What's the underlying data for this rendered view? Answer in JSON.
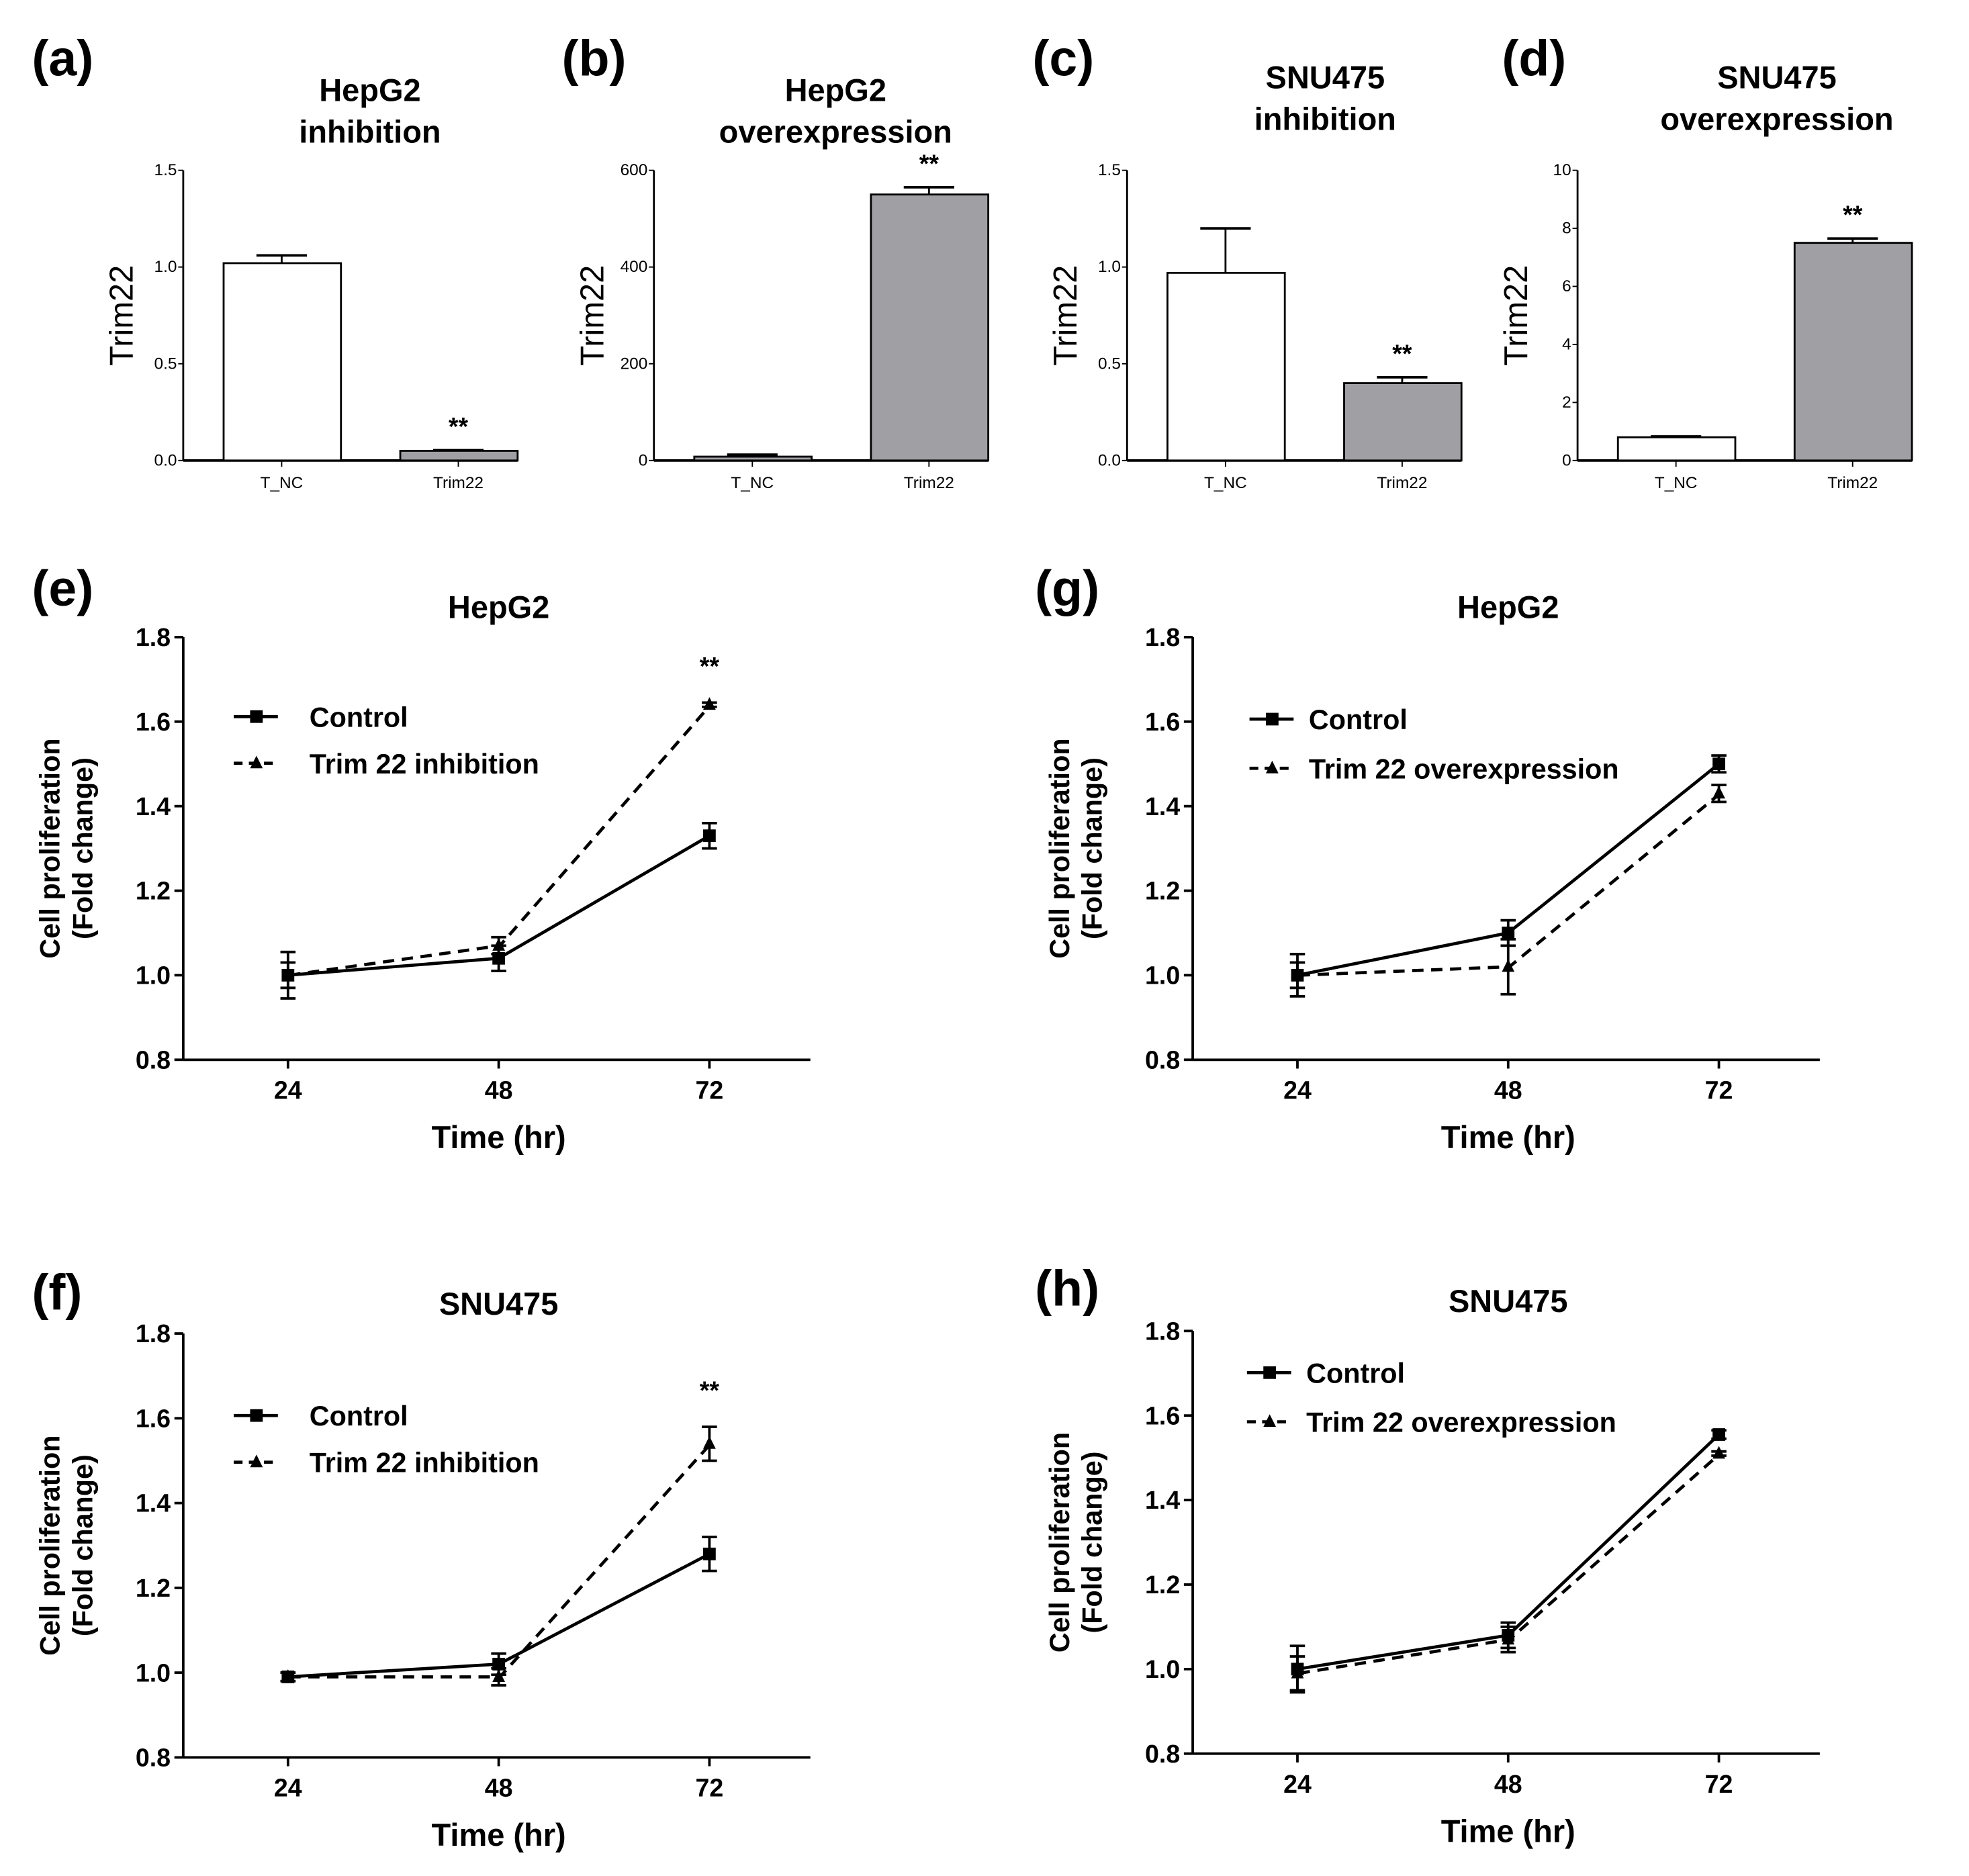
{
  "chart_data": [
    {
      "panel": "(a)",
      "type": "bar",
      "title": [
        "HepG2",
        "inhibition"
      ],
      "ylabel": "Trim22",
      "categories": [
        "T_NC",
        "Trim22"
      ],
      "values": [
        1.02,
        0.05
      ],
      "errors": [
        0.04,
        0.003
      ],
      "colors": [
        "#ffffff",
        "#a0a0a4"
      ],
      "ylim": [
        0,
        1.5
      ],
      "yticks": [
        "0.0",
        "0.5",
        "1.0",
        "1.5"
      ],
      "ytick_values": [
        0,
        0.5,
        1.0,
        1.5
      ],
      "significance": [
        "",
        "**"
      ]
    },
    {
      "panel": "(b)",
      "type": "bar",
      "title": [
        "HepG2",
        "overexpression"
      ],
      "ylabel": "Trim22",
      "categories": [
        "T_NC",
        "Trim22"
      ],
      "values": [
        8,
        550
      ],
      "errors": [
        4,
        15
      ],
      "colors": [
        "#a0a0a4",
        "#a0a0a4"
      ],
      "ylim": [
        0,
        600
      ],
      "yticks": [
        "0",
        "200",
        "400",
        "600"
      ],
      "ytick_values": [
        0,
        200,
        400,
        600
      ],
      "significance": [
        "",
        "**"
      ]
    },
    {
      "panel": "(c)",
      "type": "bar",
      "title": [
        "SNU475",
        "inhibition"
      ],
      "ylabel": "Trim22",
      "categories": [
        "T_NC",
        "Trim22"
      ],
      "values": [
        0.97,
        0.4
      ],
      "errors": [
        0.23,
        0.03
      ],
      "colors": [
        "#ffffff",
        "#a0a0a4"
      ],
      "ylim": [
        0,
        1.5
      ],
      "yticks": [
        "0.0",
        "0.5",
        "1.0",
        "1.5"
      ],
      "ytick_values": [
        0,
        0.5,
        1.0,
        1.5
      ],
      "significance": [
        "",
        "**"
      ]
    },
    {
      "panel": "(d)",
      "type": "bar",
      "title": [
        "SNU475",
        "overexpression"
      ],
      "ylabel": "Trim22",
      "categories": [
        "T_NC",
        "Trim22"
      ],
      "values": [
        0.8,
        7.5
      ],
      "errors": [
        0.03,
        0.15
      ],
      "colors": [
        "#ffffff",
        "#a0a0a4"
      ],
      "ylim": [
        0,
        10
      ],
      "yticks": [
        "0",
        "2",
        "4",
        "6",
        "8",
        "10"
      ],
      "ytick_values": [
        0,
        2,
        4,
        6,
        8,
        10
      ],
      "significance": [
        "",
        "**"
      ]
    },
    {
      "panel": "(e)",
      "type": "line",
      "title": "HepG2",
      "xlabel": "Time (hr)",
      "ylabel": [
        "Cell proliferation",
        "(Fold change)"
      ],
      "x": [
        "24",
        "48",
        "72"
      ],
      "ylim": [
        0.8,
        1.8
      ],
      "yticks": [
        "0.8",
        "1.0",
        "1.2",
        "1.4",
        "1.6",
        "1.8"
      ],
      "ytick_values": [
        0.8,
        1.0,
        1.2,
        1.4,
        1.6,
        1.8
      ],
      "legend_placement": "top-left",
      "significance": "**",
      "series": [
        {
          "name": "Control",
          "values": [
            1.0,
            1.04,
            1.33
          ],
          "errors": [
            0.03,
            0.03,
            0.03
          ],
          "marker": "square",
          "dash": false
        },
        {
          "name": "Trim 22 inhibition",
          "values": [
            1.0,
            1.07,
            1.64
          ],
          "errors": [
            0.055,
            0.02,
            0.005
          ],
          "marker": "triangle",
          "dash": true
        }
      ]
    },
    {
      "panel": "(g)",
      "type": "line",
      "title": "HepG2",
      "xlabel": "Time (hr)",
      "ylabel": [
        "Cell proliferation",
        "(Fold change)"
      ],
      "x": [
        "24",
        "48",
        "72"
      ],
      "ylim": [
        0.8,
        1.8
      ],
      "yticks": [
        "0.8",
        "1.0",
        "1.2",
        "1.4",
        "1.6",
        "1.8"
      ],
      "ytick_values": [
        0.8,
        1.0,
        1.2,
        1.4,
        1.6,
        1.8
      ],
      "legend_placement": "top-left",
      "significance": "",
      "series": [
        {
          "name": "Control",
          "values": [
            1.0,
            1.1,
            1.5
          ],
          "errors": [
            0.03,
            0.03,
            0.02
          ],
          "marker": "square",
          "dash": false
        },
        {
          "name": "Trim 22 overexpression",
          "values": [
            1.0,
            1.02,
            1.43
          ],
          "errors": [
            0.05,
            0.065,
            0.02
          ],
          "marker": "triangle",
          "dash": true
        }
      ]
    },
    {
      "panel": "(f)",
      "type": "line",
      "title": "SNU475",
      "xlabel": "Time (hr)",
      "ylabel": [
        "Cell proliferation",
        "(Fold change)"
      ],
      "x": [
        "24",
        "48",
        "72"
      ],
      "ylim": [
        0.8,
        1.8
      ],
      "yticks": [
        "0.8",
        "1.0",
        "1.2",
        "1.4",
        "1.6",
        "1.8"
      ],
      "ytick_values": [
        0.8,
        1.0,
        1.2,
        1.4,
        1.6,
        1.8
      ],
      "legend_placement": "top-left",
      "significance": "**",
      "series": [
        {
          "name": "Control",
          "values": [
            0.99,
            1.02,
            1.28
          ],
          "errors": [
            0.01,
            0.025,
            0.04
          ],
          "marker": "square",
          "dash": false
        },
        {
          "name": "Trim 22 inhibition",
          "values": [
            0.99,
            0.99,
            1.54
          ],
          "errors": [
            0.01,
            0.02,
            0.04
          ],
          "marker": "triangle",
          "dash": true
        }
      ]
    },
    {
      "panel": "(h)",
      "type": "line",
      "title": "SNU475",
      "xlabel": "Time (hr)",
      "ylabel": [
        "Cell proliferation",
        "(Fold change)"
      ],
      "x": [
        "24",
        "48",
        "72"
      ],
      "ylim": [
        0.8,
        1.8
      ],
      "yticks": [
        "0.8",
        "1.0",
        "1.2",
        "1.4",
        "1.6",
        "1.8"
      ],
      "ytick_values": [
        0.8,
        1.0,
        1.2,
        1.4,
        1.6,
        1.8
      ],
      "legend_placement": "top-left",
      "significance": "",
      "series": [
        {
          "name": "Control",
          "values": [
            1.0,
            1.08,
            1.555
          ],
          "errors": [
            0.055,
            0.03,
            0.01
          ],
          "marker": "square",
          "dash": false
        },
        {
          "name": "Trim 22 overexpression",
          "values": [
            0.99,
            1.07,
            1.51
          ],
          "errors": [
            0.04,
            0.03,
            0.005
          ],
          "marker": "triangle",
          "dash": true
        }
      ]
    }
  ]
}
